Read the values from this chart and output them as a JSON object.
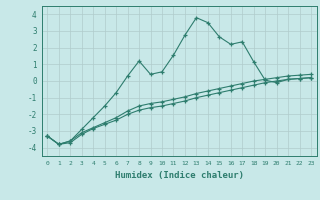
{
  "xlabel": "Humidex (Indice chaleur)",
  "x": [
    0,
    1,
    2,
    3,
    4,
    5,
    6,
    7,
    8,
    9,
    10,
    11,
    12,
    13,
    14,
    15,
    16,
    17,
    18,
    19,
    20,
    21,
    22,
    23
  ],
  "line1": [
    -3.3,
    -3.8,
    -3.6,
    -2.9,
    -2.2,
    -1.5,
    -0.7,
    0.3,
    1.2,
    0.4,
    0.55,
    1.55,
    2.75,
    3.8,
    3.5,
    2.65,
    2.2,
    2.35,
    1.15,
    0.05,
    -0.1,
    0.1,
    0.15,
    0.2
  ],
  "line2": [
    -3.3,
    -3.8,
    -3.6,
    -3.1,
    -2.8,
    -2.5,
    -2.2,
    -1.8,
    -1.5,
    -1.35,
    -1.25,
    -1.1,
    -0.95,
    -0.75,
    -0.6,
    -0.45,
    -0.3,
    -0.15,
    0.0,
    0.1,
    0.2,
    0.3,
    0.35,
    0.4
  ],
  "line3": [
    -3.3,
    -3.8,
    -3.7,
    -3.2,
    -2.85,
    -2.6,
    -2.35,
    -2.0,
    -1.75,
    -1.6,
    -1.5,
    -1.35,
    -1.2,
    -1.0,
    -0.85,
    -0.7,
    -0.55,
    -0.4,
    -0.25,
    -0.1,
    0.0,
    0.1,
    0.15,
    0.2
  ],
  "color": "#2E7D6E",
  "bg_color": "#C8E8E8",
  "grid_color": "#B0CCCC",
  "ylim": [
    -4.5,
    4.5
  ],
  "xlim": [
    -0.5,
    23.5
  ],
  "yticks": [
    -4,
    -3,
    -2,
    -1,
    0,
    1,
    2,
    3,
    4
  ],
  "xticks": [
    0,
    1,
    2,
    3,
    4,
    5,
    6,
    7,
    8,
    9,
    10,
    11,
    12,
    13,
    14,
    15,
    16,
    17,
    18,
    19,
    20,
    21,
    22,
    23
  ]
}
